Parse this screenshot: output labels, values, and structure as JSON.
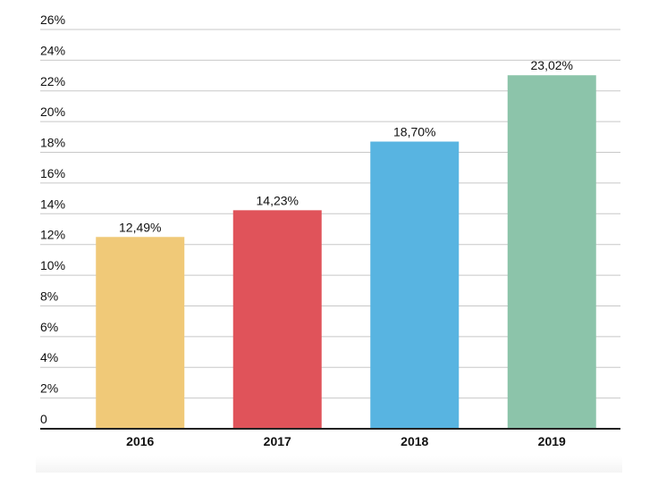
{
  "chart_data": {
    "type": "bar",
    "categories": [
      "2016",
      "2017",
      "2018",
      "2019"
    ],
    "values": [
      12.49,
      14.23,
      18.7,
      23.02
    ],
    "value_labels": [
      "12,49%",
      "14,23%",
      "18,70%",
      "23,02%"
    ],
    "colors": [
      "#f0c978",
      "#e0535a",
      "#58b4e1",
      "#8cc4aa"
    ],
    "ylim": [
      0,
      26
    ],
    "yticks": [
      0,
      2,
      4,
      6,
      8,
      10,
      12,
      14,
      16,
      18,
      20,
      22,
      24,
      26
    ],
    "ytick_labels": [
      "0",
      "2%",
      "4%",
      "6%",
      "8%",
      "10%",
      "12%",
      "14%",
      "16%",
      "18%",
      "20%",
      "22%",
      "24%",
      "26%"
    ],
    "grid": true,
    "title": "",
    "xlabel": "",
    "ylabel": ""
  }
}
